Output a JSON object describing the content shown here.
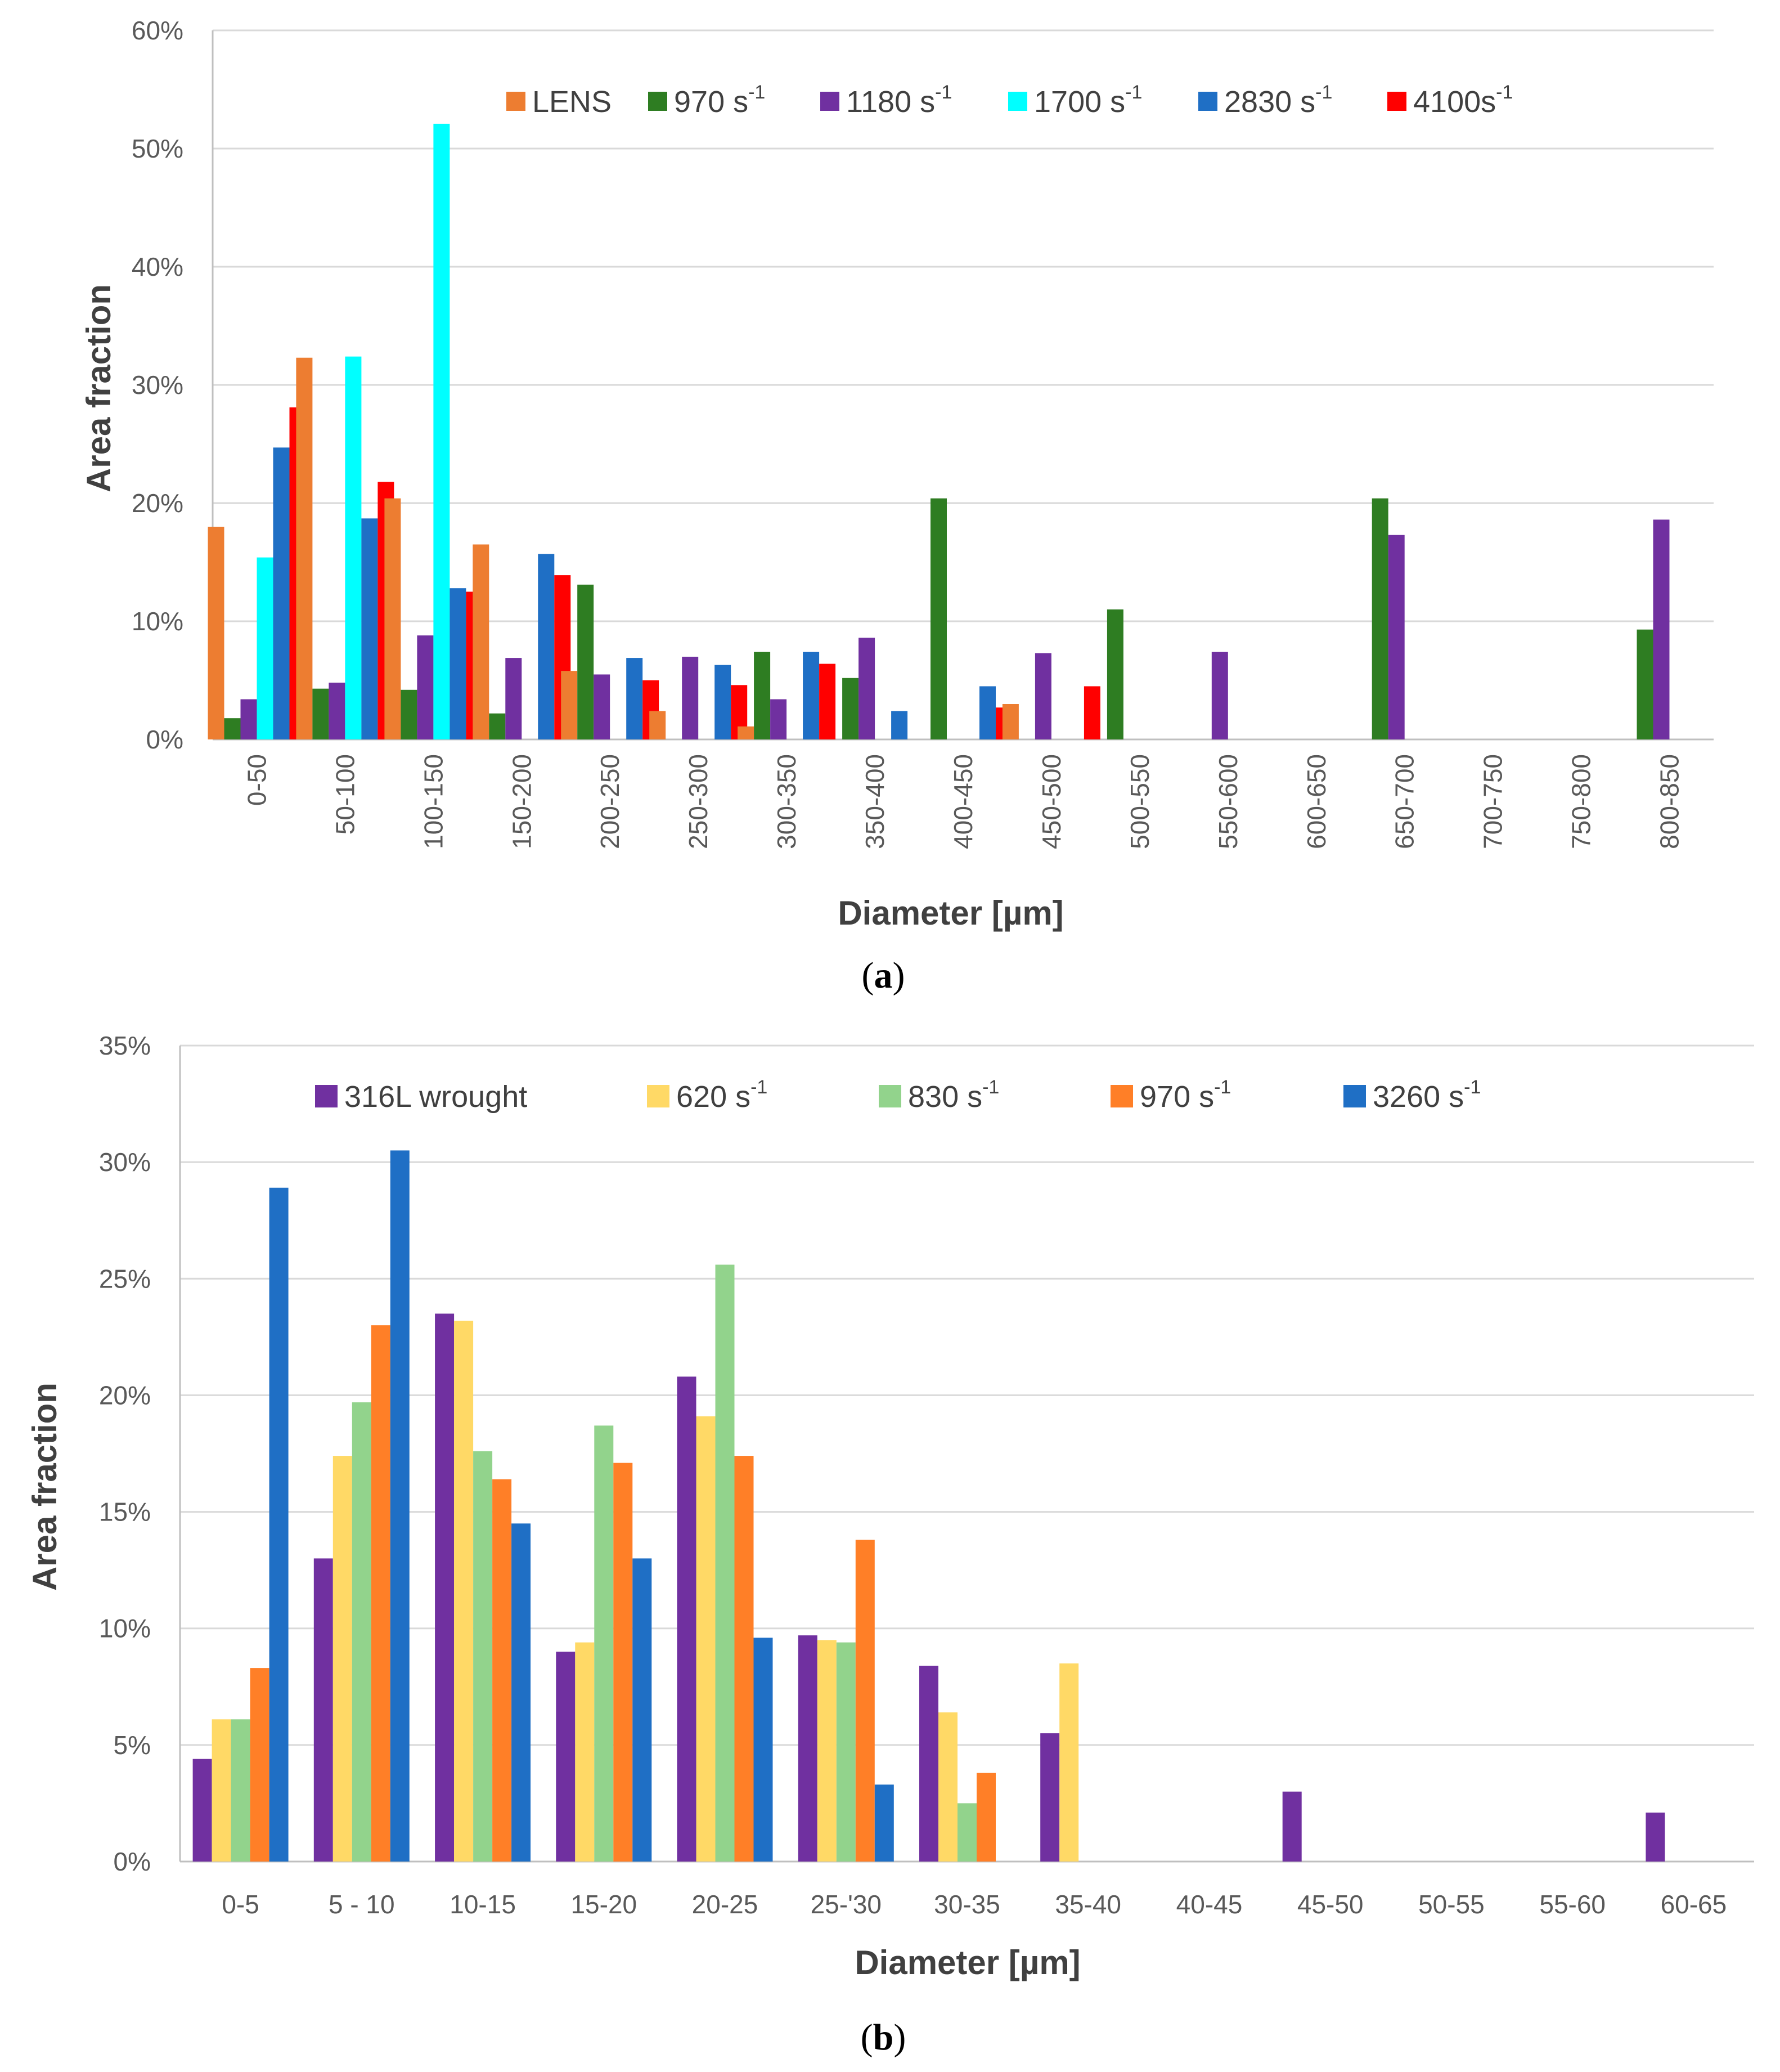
{
  "chart_data": [
    {
      "type": "bar",
      "panel_label": "a",
      "xlabel": "Diameter [µm]",
      "ylabel": "Area fraction",
      "ylim": [
        0,
        60
      ],
      "y_ticks": [
        "0%",
        "10%",
        "20%",
        "30%",
        "40%",
        "50%",
        "60%"
      ],
      "legend_position": "top",
      "categories": [
        "0-50",
        "50-100",
        "100-150",
        "150-200",
        "200-250",
        "250-300",
        "300-350",
        "350-400",
        "400-450",
        "450-500",
        "500-550",
        "550-600",
        "600-650",
        "650-700",
        "700-750",
        "750-800",
        "800-850"
      ],
      "series": [
        {
          "name": "LENS",
          "superscript": "",
          "color": "#ED7D31",
          "values": [
            18,
            32.3,
            20.4,
            16.5,
            5.8,
            2.4,
            1.1,
            0,
            0,
            3,
            0,
            0,
            0,
            0,
            0,
            0,
            0
          ]
        },
        {
          "name": "970 s",
          "superscript": "-1",
          "color": "#2E7D22",
          "values": [
            1.8,
            4.3,
            4.2,
            2.2,
            13.1,
            0,
            7.4,
            5.2,
            20.4,
            0,
            11,
            0,
            0,
            20.4,
            0,
            0,
            9.3
          ]
        },
        {
          "name": "1180 s",
          "superscript": "-1",
          "color": "#7030A0",
          "values": [
            3.4,
            4.8,
            8.8,
            6.9,
            5.5,
            7,
            3.4,
            8.6,
            0,
            7.3,
            0,
            7.4,
            0,
            17.3,
            0,
            0,
            18.6
          ]
        },
        {
          "name": "1700 s",
          "superscript": "-1",
          "color": "#00FFFF",
          "values": [
            15.4,
            32.4,
            52.1,
            0,
            0,
            0,
            0,
            0,
            0,
            0,
            0,
            0,
            0,
            0,
            0,
            0,
            0
          ]
        },
        {
          "name": "2830 s",
          "superscript": "-1",
          "color": "#1F6FC5",
          "values": [
            24.7,
            18.7,
            12.8,
            15.7,
            6.9,
            6.3,
            7.4,
            2.4,
            4.5,
            0,
            0,
            0,
            0,
            0,
            0,
            0,
            0
          ]
        },
        {
          "name": "4100s",
          "superscript": "-1",
          "color": "#FF0000",
          "values": [
            28.1,
            21.8,
            12.5,
            13.9,
            5,
            4.6,
            6.4,
            0,
            2.7,
            4.5,
            0,
            0,
            0,
            0,
            0,
            0,
            0
          ]
        }
      ]
    },
    {
      "type": "bar",
      "panel_label": "b",
      "xlabel": "Diameter [µm]",
      "ylabel": "Area fraction",
      "ylim": [
        0,
        35
      ],
      "y_ticks": [
        "0%",
        "5%",
        "10%",
        "15%",
        "20%",
        "25%",
        "30%",
        "35%"
      ],
      "legend_position": "top",
      "categories": [
        "0-5",
        "5 - 10",
        "10-15",
        "15-20",
        "20-25",
        "25-'30",
        "30-35",
        "35-40",
        "40-45",
        "45-50",
        "50-55",
        "55-60",
        "60-65"
      ],
      "series": [
        {
          "name": "316L wrought",
          "superscript": "",
          "color": "#7030A0",
          "values": [
            4.4,
            13,
            23.5,
            9,
            20.8,
            9.7,
            8.4,
            5.5,
            0,
            3,
            0,
            0,
            2.1
          ]
        },
        {
          "name": "620 s",
          "superscript": "-1",
          "color": "#FFD966",
          "values": [
            6.1,
            17.4,
            23.2,
            9.4,
            19.1,
            9.5,
            6.4,
            8.5,
            0,
            0,
            0,
            0,
            0
          ]
        },
        {
          "name": "830 s",
          "superscript": "-1",
          "color": "#92D38C",
          "values": [
            6.1,
            19.7,
            17.6,
            18.7,
            25.6,
            9.4,
            2.5,
            0,
            0,
            0,
            0,
            0,
            0
          ]
        },
        {
          "name": "970 s",
          "superscript": "-1",
          "color": "#FF7F27",
          "values": [
            8.3,
            23,
            16.4,
            17.1,
            17.4,
            13.8,
            3.8,
            0,
            0,
            0,
            0,
            0,
            0
          ]
        },
        {
          "name": "3260 s",
          "superscript": "-1",
          "color": "#1F6FC5",
          "values": [
            28.9,
            30.5,
            14.5,
            13,
            9.6,
            3.3,
            0,
            0,
            0,
            0,
            0,
            0,
            0
          ]
        }
      ]
    }
  ]
}
